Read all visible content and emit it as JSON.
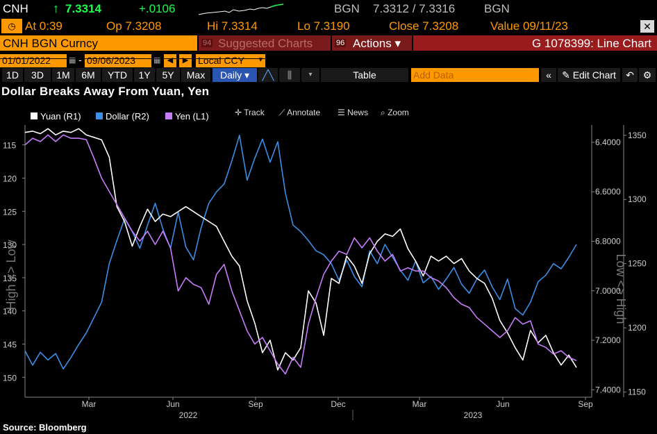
{
  "header": {
    "ticker": "CNH",
    "up_arrow": "↑",
    "last": "7.3314",
    "change": "+.0106",
    "source1": "BGN",
    "bid_ask": "7.3312 / 7.3316",
    "source2": "BGN"
  },
  "stats": {
    "at": "At 0:39",
    "op": "Op 7.3208",
    "hi": "Hi 7.3314",
    "lo": "Lo 7.3190",
    "close": "Close 7.3208",
    "value": "Value 09/11/23"
  },
  "security_bar": {
    "security": "CNH BGN Curncy",
    "suggested": "Suggested Charts",
    "suggested_num": "94",
    "actions_num": "96",
    "actions": "Actions ▾",
    "chart_id": "G 1078399: Line Chart"
  },
  "date_bar": {
    "start": "01/01/2022",
    "sep": "-",
    "end": "09/06/2023",
    "currency": "Local CCY"
  },
  "toolbar": {
    "periods": [
      "1D",
      "3D",
      "1M",
      "6M",
      "YTD",
      "1Y",
      "5Y",
      "Max"
    ],
    "frequency": "Daily ▾",
    "table": "Table",
    "add_data_placeholder": "Add Data",
    "edit_chart": "Edit Chart"
  },
  "legend_tools": {
    "track": "Track",
    "annotate": "Annotate",
    "news": "News",
    "zoom": "Zoom"
  },
  "source": "Source: Bloomberg",
  "colors": {
    "yuan": "#ffffff",
    "dollar": "#3b8fe6",
    "yen": "#c77dfa",
    "amber": "#ff9900",
    "red_bar": "#9a1b1b"
  },
  "chart_data": {
    "type": "line",
    "title": "Dollar Breaks Away From Yuan, Yen",
    "x_month_labels": [
      "Mar",
      "Jun",
      "Sep",
      "Dec",
      "Mar",
      "Jun",
      "Sep"
    ],
    "x_year_labels": [
      "2022",
      "2023"
    ],
    "left_axis": {
      "label": "High <> Low",
      "ticks": [
        115,
        120,
        125,
        130,
        135,
        140,
        145,
        150
      ],
      "inverted": true,
      "range": [
        112,
        153
      ]
    },
    "right1_axis": {
      "label": "Low <> High",
      "ticks": [
        "6.4000",
        "6.6000",
        "6.8000",
        "7.0000",
        "7.2000",
        "7.4000"
      ],
      "inverted": true,
      "range": [
        6.33,
        7.43
      ]
    },
    "right2_axis": {
      "ticks": [
        1350,
        1300,
        1250,
        1200,
        1150
      ],
      "range": [
        1146,
        1358
      ]
    },
    "series": [
      {
        "name": "Yuan (R1)",
        "axis": "R1",
        "color": "#ffffff",
        "values": [
          6.36,
          6.355,
          6.365,
          6.345,
          6.37,
          6.355,
          6.36,
          6.345,
          6.37,
          6.38,
          6.39,
          6.46,
          6.66,
          6.72,
          6.82,
          6.74,
          6.67,
          6.72,
          6.69,
          6.7,
          6.68,
          6.66,
          6.68,
          6.7,
          6.72,
          6.74,
          6.8,
          6.86,
          6.9,
          7.04,
          7.13,
          7.25,
          7.2,
          7.32,
          7.25,
          7.28,
          7.23,
          7.0,
          7.05,
          7.18,
          6.95,
          6.97,
          6.86,
          6.9,
          6.97,
          6.85,
          6.8,
          6.77,
          6.78,
          6.75,
          6.83,
          6.88,
          6.94,
          6.86,
          6.88,
          6.86,
          6.89,
          6.87,
          6.92,
          6.95,
          6.97,
          7.03,
          7.12,
          7.17,
          7.23,
          7.28,
          7.16,
          7.21,
          7.18,
          7.25,
          7.3,
          7.26,
          7.31
        ]
      },
      {
        "name": "Dollar (R2)",
        "axis": "R2",
        "color": "#3b8fe6",
        "values": [
          1182,
          1171,
          1181,
          1175,
          1180,
          1168,
          1177,
          1187,
          1196,
          1208,
          1220,
          1250,
          1268,
          1285,
          1275,
          1262,
          1280,
          1297,
          1277,
          1262,
          1290,
          1263,
          1253,
          1278,
          1297,
          1306,
          1312,
          1330,
          1350,
          1315,
          1332,
          1347,
          1329,
          1345,
          1305,
          1280,
          1275,
          1268,
          1260,
          1257,
          1250,
          1237,
          1253,
          1240,
          1232,
          1260,
          1250,
          1265,
          1255,
          1245,
          1237,
          1252,
          1235,
          1240,
          1230,
          1238,
          1247,
          1234,
          1227,
          1238,
          1245,
          1232,
          1222,
          1238,
          1215,
          1210,
          1220,
          1236,
          1241,
          1250,
          1246,
          1255,
          1265
        ]
      },
      {
        "name": "Yen (L1)",
        "axis": "L1",
        "color": "#c77dfa",
        "values": [
          115.0,
          114.0,
          114.5,
          113.5,
          114.5,
          113.5,
          114.0,
          114.0,
          114.2,
          117.0,
          120.0,
          122.0,
          124.0,
          126.0,
          128.0,
          129.5,
          128.0,
          130.0,
          128.0,
          130.5,
          137.0,
          135.0,
          136.0,
          136.5,
          139.0,
          134.5,
          133.0,
          137.0,
          140.0,
          143.0,
          145.0,
          144.0,
          146.0,
          148.0,
          149.5,
          147.0,
          148.5,
          142.0,
          138.0,
          134.5,
          132.5,
          131.0,
          131.5,
          129.0,
          130.5,
          129.0,
          131.0,
          132.5,
          131.5,
          134.0,
          133.5,
          134.0,
          134.0,
          135.0,
          135.5,
          136.5,
          138.0,
          139.0,
          139.5,
          141.0,
          142.0,
          143.0,
          144.0,
          143.0,
          141.0,
          142.0,
          141.5,
          145.0,
          145.5,
          146.5,
          146.0,
          147.0,
          147.5
        ]
      }
    ]
  }
}
